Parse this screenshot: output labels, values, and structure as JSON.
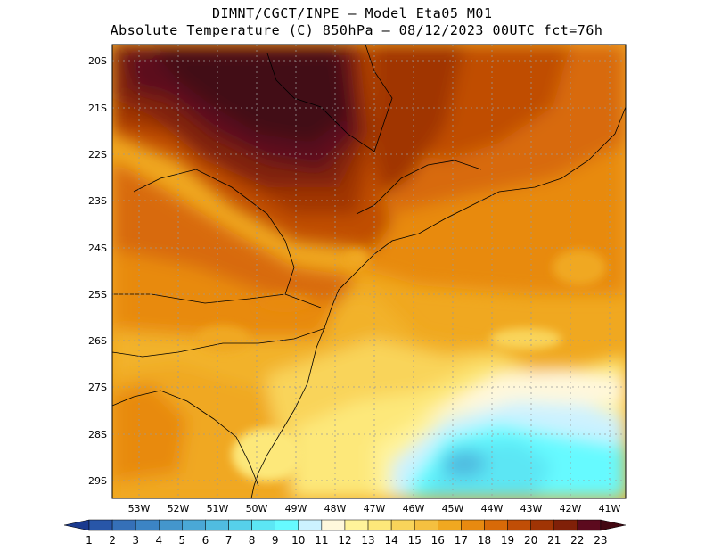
{
  "header": {
    "title_line1": "DIMNT/CGCT/INPE –  Model Eta05_M01_",
    "title_line2": "Absolute Temperature (C) 850hPa –  08/12/2023 00UTC fct=76h"
  },
  "axes": {
    "lat_labels": [
      "20S",
      "21S",
      "22S",
      "23S",
      "24S",
      "25S",
      "26S",
      "27S",
      "28S",
      "29S"
    ],
    "lon_labels": [
      "53W",
      "52W",
      "51W",
      "50W",
      "49W",
      "48W",
      "47W",
      "46W",
      "45W",
      "44W",
      "43W",
      "42W",
      "41W"
    ]
  },
  "colorbar": {
    "labels": [
      "1",
      "2",
      "3",
      "4",
      "5",
      "6",
      "7",
      "8",
      "9",
      "10",
      "11",
      "12",
      "13",
      "14",
      "15",
      "16",
      "17",
      "18",
      "19",
      "20",
      "21",
      "22",
      "23"
    ],
    "colors": [
      "#1a3a8f",
      "#2856a8",
      "#3570b8",
      "#3c84c4",
      "#4496cc",
      "#4aa8d6",
      "#50bce0",
      "#56d0ea",
      "#5ce6f4",
      "#66faff",
      "#ccf2ff",
      "#fff8dc",
      "#fff39a",
      "#fde87a",
      "#f9d45a",
      "#f5c040",
      "#f0a820",
      "#e88a10",
      "#d86a08",
      "#c04e06",
      "#a03404",
      "#802008",
      "#5c0a1e",
      "#420812"
    ]
  }
}
